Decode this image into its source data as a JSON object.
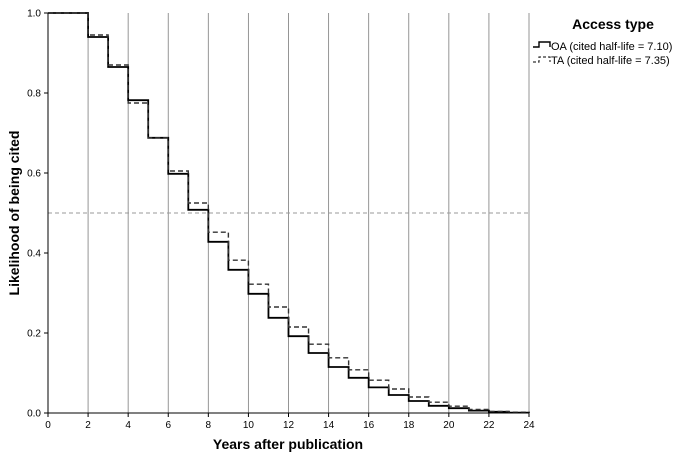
{
  "chart_data": {
    "type": "line",
    "step": true,
    "title": "",
    "xlabel": "Years after publication",
    "ylabel": "Likelihood of being cited",
    "xlim": [
      0,
      24
    ],
    "ylim": [
      0,
      1.0
    ],
    "x_ticks": [
      "0",
      "2",
      "4",
      "6",
      "8",
      "10",
      "12",
      "14",
      "16",
      "18",
      "20",
      "22",
      "24"
    ],
    "y_ticks": [
      "0.0",
      "0.2",
      "0.4",
      "0.6",
      "0.8",
      "1.0"
    ],
    "grid": "vertical-at-each-x-tick",
    "reference_line": {
      "y": 0.5,
      "style": "dashed",
      "color": "#999999"
    },
    "legend": {
      "title": "Access type",
      "placement": "top-right",
      "entries": [
        {
          "label": "OA (cited half-life = 7.10)",
          "style": "solid"
        },
        {
          "label": "TA (cited half-life = 7.35)",
          "style": "dashed"
        }
      ]
    },
    "series": [
      {
        "name": "OA (cited half-life = 7.10)",
        "style": "solid",
        "color": "#000000",
        "x": [
          0,
          1,
          2,
          3,
          4,
          5,
          6,
          7,
          8,
          9,
          10,
          11,
          12,
          13,
          14,
          15,
          16,
          17,
          18,
          19,
          20,
          21,
          22,
          23,
          24
        ],
        "values": [
          1.0,
          1.0,
          0.94,
          0.865,
          0.782,
          0.688,
          0.598,
          0.508,
          0.428,
          0.358,
          0.298,
          0.238,
          0.192,
          0.15,
          0.115,
          0.088,
          0.064,
          0.045,
          0.03,
          0.018,
          0.012,
          0.006,
          0.003,
          0.001,
          0.0
        ]
      },
      {
        "name": "TA (cited half-life = 7.35)",
        "style": "dashed",
        "color": "#333333",
        "x": [
          0,
          1,
          2,
          3,
          4,
          5,
          6,
          7,
          8,
          9,
          10,
          11,
          12,
          13,
          14,
          15,
          16,
          17,
          18,
          19,
          20,
          21,
          22,
          23,
          24
        ],
        "values": [
          1.0,
          1.0,
          0.945,
          0.87,
          0.775,
          0.688,
          0.605,
          0.525,
          0.452,
          0.382,
          0.322,
          0.265,
          0.215,
          0.172,
          0.138,
          0.108,
          0.082,
          0.06,
          0.04,
          0.027,
          0.017,
          0.009,
          0.004,
          0.002,
          0.0
        ]
      }
    ]
  }
}
